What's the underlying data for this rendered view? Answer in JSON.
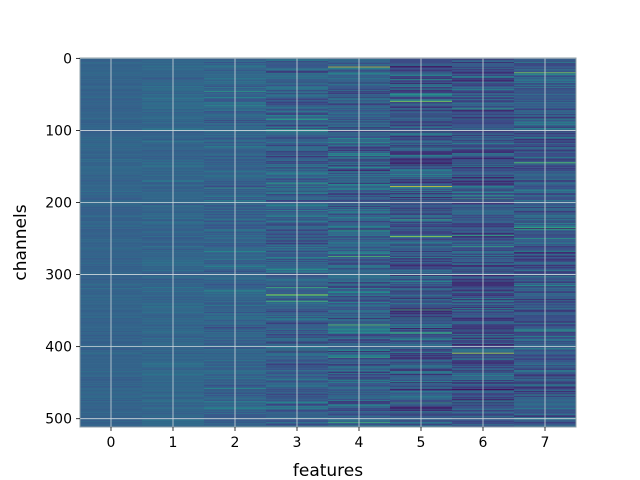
{
  "chart_data": {
    "type": "heatmap",
    "xlabel": "features",
    "ylabel": "channels",
    "x_ticks": [
      "0",
      "1",
      "2",
      "3",
      "4",
      "5",
      "6",
      "7"
    ],
    "y_ticks": [
      "0",
      "100",
      "200",
      "300",
      "400",
      "500"
    ],
    "n_features": 8,
    "n_channels": 512,
    "xlim": [
      -0.5,
      7.5
    ],
    "ylim": [
      511.5,
      -0.5
    ],
    "grid": true,
    "colormap": "viridis",
    "feature_spread": [
      0.05,
      0.07,
      0.12,
      0.2,
      0.22,
      0.26,
      0.24,
      0.22
    ],
    "feature_baseline": [
      0.32,
      0.33,
      0.32,
      0.31,
      0.3,
      0.27,
      0.26,
      0.28
    ],
    "highlights": [
      {
        "feature": 4,
        "channel": 12,
        "value": 0.9
      },
      {
        "feature": 5,
        "channel": 178,
        "value": 0.95
      },
      {
        "feature": 5,
        "channel": 247,
        "value": 0.85
      },
      {
        "feature": 6,
        "channel": 409,
        "value": 0.9
      },
      {
        "feature": 7,
        "channel": 20,
        "value": 0.8
      },
      {
        "feature": 7,
        "channel": 145,
        "value": 0.75
      },
      {
        "feature": 3,
        "channel": 328,
        "value": 0.8
      },
      {
        "feature": 2,
        "channel": 180,
        "value": 0.55
      },
      {
        "feature": 5,
        "channel": 60,
        "value": 0.8
      },
      {
        "feature": 4,
        "channel": 370,
        "value": 0.75
      }
    ]
  },
  "colors": {
    "frame": "#8fa0a8",
    "grid": "#d0d8dc"
  }
}
